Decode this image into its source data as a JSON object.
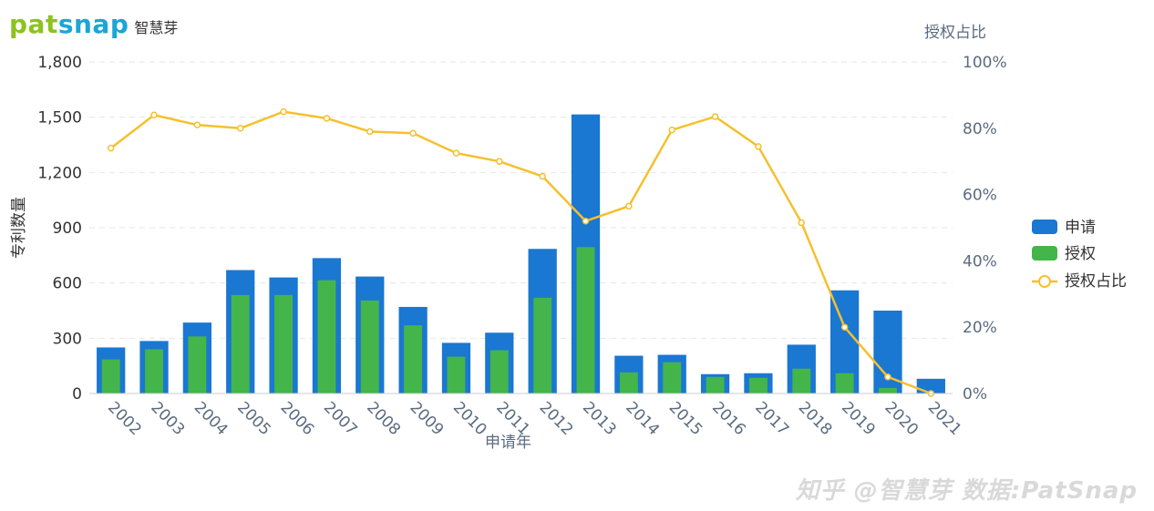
{
  "branding": {
    "logo_text": "patsnap",
    "logo_subtitle": "智慧芽",
    "logo_colors": [
      "#8dc21f",
      "#1aa6d6"
    ],
    "watermark": "知乎 @智慧芽 数据:PatSnap"
  },
  "chart_data": {
    "type": "bar",
    "categories": [
      "2002",
      "2003",
      "2004",
      "2005",
      "2006",
      "2007",
      "2008",
      "2009",
      "2010",
      "2011",
      "2012",
      "2013",
      "2014",
      "2015",
      "2016",
      "2017",
      "2018",
      "2019",
      "2020",
      "2021"
    ],
    "series": [
      {
        "name": "申请",
        "type": "bar",
        "color": "#1a77d2",
        "values": [
          250,
          285,
          385,
          670,
          630,
          735,
          635,
          470,
          275,
          330,
          785,
          1515,
          205,
          210,
          105,
          110,
          265,
          560,
          450,
          80
        ]
      },
      {
        "name": "授权",
        "type": "bar",
        "color": "#44b54a",
        "values": [
          185,
          240,
          310,
          535,
          535,
          615,
          505,
          370,
          200,
          235,
          520,
          795,
          115,
          170,
          90,
          85,
          135,
          110,
          30,
          0
        ]
      },
      {
        "name": "授权占比",
        "type": "line",
        "color": "#f5c02e",
        "axis": "right",
        "values": [
          74,
          84,
          81,
          80,
          85,
          83,
          79,
          78.5,
          72.5,
          70,
          65.5,
          52,
          56.5,
          79.5,
          83.5,
          74.5,
          51.5,
          20,
          5,
          0
        ]
      }
    ],
    "xlabel": "申请年",
    "ylabel": "专利数量",
    "y2label": "授权占比",
    "ylim": [
      0,
      1800
    ],
    "yticks": [
      "0",
      "300",
      "600",
      "900",
      "1,200",
      "1,500",
      "1,800"
    ],
    "ytick_values": [
      0,
      300,
      600,
      900,
      1200,
      1500,
      1800
    ],
    "y2lim": [
      0,
      100
    ],
    "y2ticks": [
      "0%",
      "20%",
      "40%",
      "60%",
      "80%",
      "100%"
    ],
    "y2tick_values": [
      0,
      20,
      40,
      60,
      80,
      100
    ],
    "grid": true,
    "legend_position": "right"
  }
}
